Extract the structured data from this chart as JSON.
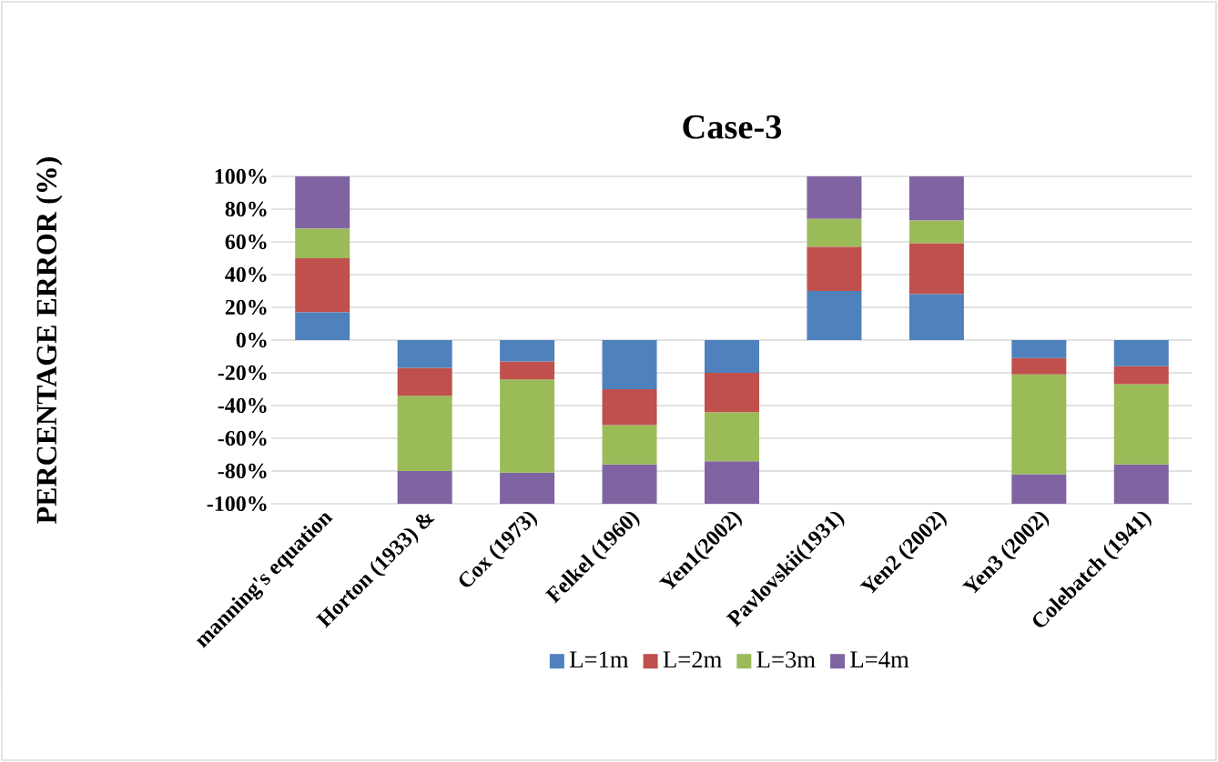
{
  "chart_data": {
    "type": "bar",
    "title": "Case-3",
    "ylabel": "PERCENTAGE ERROR (%)",
    "stacked": true,
    "grid": "y",
    "legend": "bottom",
    "categories": [
      "manning's equation",
      "Horton (1933) &",
      "Cox (1973)",
      "Felkel (1960)",
      "Yen1(2002)",
      "Pavlovskii(1931)",
      "Yen2 (2002)",
      "Yen3 (2002)",
      "Colebatch (1941)"
    ],
    "ylim": [
      -100,
      100
    ],
    "yticks": [
      {
        "value": -100,
        "label": "-100%"
      },
      {
        "value": -80,
        "label": "-80%"
      },
      {
        "value": -60,
        "label": "-60%"
      },
      {
        "value": -40,
        "label": "-40%"
      },
      {
        "value": -20,
        "label": "-20%"
      },
      {
        "value": 0,
        "label": "0%"
      },
      {
        "value": 20,
        "label": "20%"
      },
      {
        "value": 40,
        "label": "40%"
      },
      {
        "value": 60,
        "label": "60%"
      },
      {
        "value": 80,
        "label": "80%"
      },
      {
        "value": 100,
        "label": "100%"
      }
    ],
    "series": [
      {
        "name": "L=1m",
        "color": "#4f81bd",
        "values": [
          17,
          -17,
          -13,
          -30,
          -20,
          30,
          28,
          -11,
          -16
        ]
      },
      {
        "name": "L=2m",
        "color": "#c0504d",
        "values": [
          33,
          -17,
          -11,
          -22,
          -24,
          27,
          31,
          -10,
          -11
        ]
      },
      {
        "name": "L=3m",
        "color": "#9bbb59",
        "values": [
          18,
          -46,
          -57,
          -24,
          -30,
          17,
          14,
          -61,
          -49
        ]
      },
      {
        "name": "L=4m",
        "color": "#8064a2",
        "values": [
          32,
          -20,
          -19,
          -24,
          -26,
          26,
          27,
          -18,
          -24
        ]
      }
    ]
  }
}
